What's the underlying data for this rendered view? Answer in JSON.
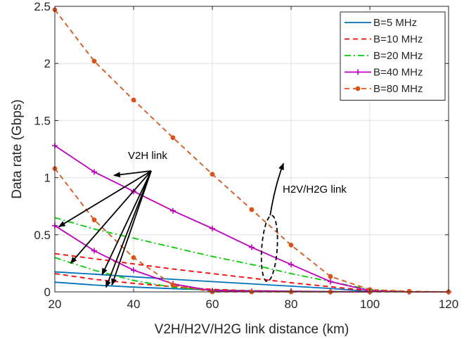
{
  "chart_data": {
    "type": "line",
    "xlabel": "V2H/H2V/H2G link distance (km)",
    "ylabel": "Data rate (Gbps)",
    "xlim": [
      20,
      120
    ],
    "ylim": [
      0,
      2.5
    ],
    "xticks": [
      "20",
      "40",
      "60",
      "80",
      "100",
      "120"
    ],
    "yticks": [
      "0",
      "0.5",
      "1",
      "1.5",
      "2",
      "2.5"
    ],
    "grid": true,
    "legend_position": "top-right",
    "annotations": [
      "V2H link",
      "H2V/H2G link"
    ],
    "series": [
      {
        "name": "B=5 MHz",
        "color": "#0072BD",
        "style": "solid",
        "marker": "none",
        "v2h": {
          "x": [
            20,
            30,
            40,
            50,
            60,
            70,
            80,
            90,
            100
          ],
          "y": [
            0.085,
            0.06,
            0.042,
            0.028,
            0.017,
            0.01,
            0.006,
            0.003,
            0.0
          ]
        },
        "h2v_h2g": {
          "x": [
            20,
            30,
            40,
            50,
            60,
            70,
            80,
            90,
            100,
            110,
            120
          ],
          "y": [
            0.175,
            0.155,
            0.132,
            0.11,
            0.09,
            0.07,
            0.05,
            0.03,
            0.004,
            0.0,
            0.0
          ]
        }
      },
      {
        "name": "B=10 MHz",
        "color": "#FF0000",
        "style": "dashed",
        "marker": "none",
        "v2h": {
          "x": [
            20,
            30,
            40,
            50,
            60,
            70,
            80,
            90,
            100
          ],
          "y": [
            0.16,
            0.11,
            0.075,
            0.045,
            0.022,
            0.01,
            0.005,
            0.002,
            0.0
          ]
        },
        "h2v_h2g": {
          "x": [
            20,
            30,
            40,
            50,
            60,
            70,
            80,
            90,
            100,
            110,
            120
          ],
          "y": [
            0.335,
            0.29,
            0.245,
            0.2,
            0.16,
            0.12,
            0.08,
            0.045,
            0.01,
            0.0,
            0.0
          ]
        }
      },
      {
        "name": "B=20 MHz",
        "color": "#00CC00",
        "style": "dashdot",
        "marker": "none",
        "v2h": {
          "x": [
            20,
            30,
            40,
            50,
            60,
            70,
            80,
            90,
            100
          ],
          "y": [
            0.3,
            0.19,
            0.1,
            0.04,
            0.01,
            0.003,
            0.001,
            0.0,
            0.0
          ]
        },
        "h2v_h2g": {
          "x": [
            20,
            30,
            40,
            50,
            60,
            70,
            80,
            90,
            100,
            110,
            120
          ],
          "y": [
            0.65,
            0.55,
            0.47,
            0.39,
            0.31,
            0.24,
            0.16,
            0.09,
            0.02,
            0.0,
            0.0
          ]
        }
      },
      {
        "name": "B=40 MHz",
        "color": "#BF00BF",
        "style": "solid",
        "marker": "+",
        "v2h": {
          "x": [
            20,
            30,
            40,
            50,
            60,
            70,
            80,
            90,
            100
          ],
          "y": [
            0.58,
            0.36,
            0.19,
            0.07,
            0.01,
            0.005,
            0.003,
            0.001,
            0.0
          ]
        },
        "h2v_h2g": {
          "x": [
            20,
            30,
            40,
            50,
            60,
            70,
            80,
            90,
            100,
            110,
            120
          ],
          "y": [
            1.28,
            1.05,
            0.88,
            0.71,
            0.555,
            0.39,
            0.24,
            0.09,
            0.01,
            0.0,
            0.0
          ]
        }
      },
      {
        "name": "B=80 MHz",
        "color": "#D95319",
        "style": "dashed",
        "marker": "dot",
        "v2h": {
          "x": [
            20,
            30,
            40,
            50,
            60,
            70,
            80,
            90,
            100,
            110,
            120
          ],
          "y": [
            1.08,
            0.63,
            0.3,
            0.06,
            0.0,
            0.0,
            0.0,
            0.0,
            0.0,
            0.0,
            0.0
          ]
        },
        "h2v_h2g": {
          "x": [
            20,
            30,
            40,
            50,
            60,
            70,
            80,
            90,
            100,
            110,
            120
          ],
          "y": [
            2.47,
            2.02,
            1.68,
            1.35,
            1.03,
            0.72,
            0.41,
            0.135,
            0.02,
            0.005,
            0.0
          ]
        }
      }
    ]
  }
}
